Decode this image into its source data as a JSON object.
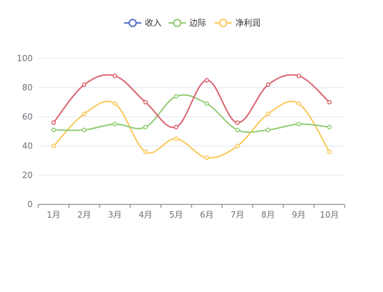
{
  "chart_data": {
    "type": "line",
    "smooth": true,
    "categories": [
      "1月",
      "2月",
      "3月",
      "4月",
      "5月",
      "6月",
      "7月",
      "8月",
      "9月",
      "10月"
    ],
    "ylim": [
      0,
      100
    ],
    "yticks": [
      0,
      20,
      40,
      60,
      80,
      100
    ],
    "grid": true,
    "legend_position": "top-center",
    "series": [
      {
        "name": "收入",
        "legend_color": "#5470c6",
        "color": "#d9626f",
        "values": [
          56,
          82,
          88,
          70,
          53,
          85,
          56,
          82,
          88,
          70
        ]
      },
      {
        "name": "边际",
        "legend_color": "#91cc75",
        "color": "#91cc75",
        "values": [
          51,
          51,
          55,
          53,
          74,
          69,
          51,
          51,
          55,
          53
        ]
      },
      {
        "name": "净利润",
        "legend_color": "#fac858",
        "color": "#fac858",
        "values": [
          40,
          62,
          69,
          36,
          45,
          32,
          40,
          62,
          69,
          36
        ]
      }
    ]
  }
}
